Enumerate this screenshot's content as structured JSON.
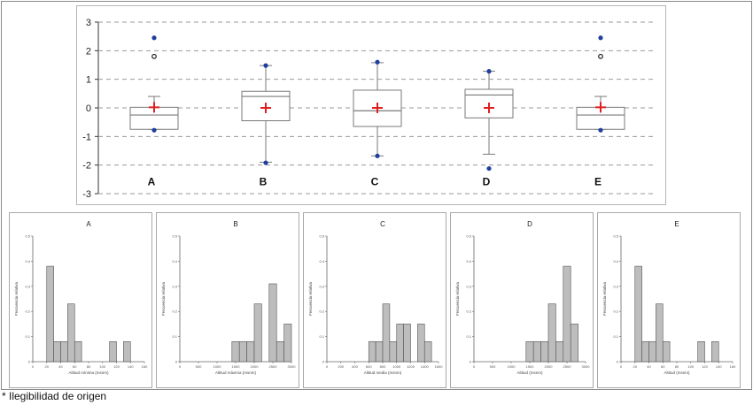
{
  "footnote": "* Ilegibilidad de origen",
  "colors": {
    "box_fill": "#ffffff",
    "box_stroke": "#7a7a7a",
    "mean_marker": "#e02020",
    "outlier": "#1f3f9f",
    "bar_fill": "#bdbdbd",
    "bar_stroke": "#555555"
  },
  "chart_data": [
    {
      "type": "box",
      "title": "",
      "ylim": [
        -3,
        3
      ],
      "yticks": [
        "3",
        "2",
        "1",
        "0",
        "-1",
        "-2",
        "-3"
      ],
      "categories": [
        "A",
        "B",
        "C",
        "D",
        "E"
      ],
      "boxes": [
        {
          "label": "A",
          "whisker_low": -0.75,
          "q1": -0.75,
          "median": -0.25,
          "q3": 0.02,
          "whisker_high": 0.4,
          "mean": 0.02,
          "outliers_filled": [
            2.45,
            -0.78
          ],
          "outliers_open": [
            1.8
          ]
        },
        {
          "label": "B",
          "whisker_low": -1.9,
          "q1": -0.45,
          "median": 0.4,
          "q3": 0.58,
          "whisker_high": 1.48,
          "mean": 0.0,
          "outliers_filled": [
            1.48,
            -1.92
          ],
          "outliers_open": []
        },
        {
          "label": "C",
          "whisker_low": -1.68,
          "q1": -0.65,
          "median": -0.1,
          "q3": 0.62,
          "whisker_high": 1.58,
          "mean": 0.0,
          "outliers_filled": [
            1.6,
            -1.68
          ],
          "outliers_open": []
        },
        {
          "label": "D",
          "whisker_low": -1.62,
          "q1": -0.35,
          "median": 0.45,
          "q3": 0.65,
          "whisker_high": 1.28,
          "mean": 0.0,
          "outliers_filled": [
            1.28,
            -2.12
          ],
          "outliers_open": []
        },
        {
          "label": "E",
          "whisker_low": -0.75,
          "q1": -0.75,
          "median": -0.25,
          "q3": 0.02,
          "whisker_high": 0.4,
          "mean": 0.02,
          "outliers_filled": [
            2.45,
            -0.78
          ],
          "outliers_open": [
            1.8
          ]
        }
      ]
    },
    {
      "type": "bar",
      "title": "A",
      "ylabel": "Frecuencia relativa",
      "xlabel": "Altitud mínima (msnm)",
      "ylim": [
        0,
        0.5
      ],
      "yticks": [
        "0.5",
        "0.4",
        "0.3",
        "0.2",
        "0.1",
        "0"
      ],
      "xlim": [
        0,
        160
      ],
      "xticks": [
        "0",
        "20",
        "40",
        "60",
        "80",
        "100",
        "120",
        "140",
        "160"
      ],
      "bin_width": 10,
      "bins": [
        20,
        30,
        40,
        50,
        60,
        110,
        130
      ],
      "values": [
        0.38,
        0.08,
        0.08,
        0.23,
        0.08,
        0.08,
        0.08
      ]
    },
    {
      "type": "bar",
      "title": "B",
      "ylabel": "Frecuencia relativa",
      "xlabel": "Altitud máxima (msnm)",
      "ylim": [
        0,
        0.5
      ],
      "yticks": [
        "0.5",
        "0.4",
        "0.3",
        "0.2",
        "0.1",
        "0"
      ],
      "xlim": [
        0,
        3000
      ],
      "xticks": [
        "0",
        "500",
        "1000",
        "1500",
        "2000",
        "2500",
        "3000"
      ],
      "bin_width": 200,
      "bins": [
        1400,
        1600,
        1800,
        2000,
        2400,
        2600,
        2800
      ],
      "values": [
        0.08,
        0.08,
        0.08,
        0.23,
        0.31,
        0.08,
        0.15
      ]
    },
    {
      "type": "bar",
      "title": "C",
      "ylabel": "Frecuencia relativa",
      "xlabel": "Altitud media (msnm)",
      "ylim": [
        0,
        0.5
      ],
      "yticks": [
        "0.5",
        "0.4",
        "0.3",
        "0.2",
        "0.1",
        "0"
      ],
      "xlim": [
        0,
        1600
      ],
      "xticks": [
        "0",
        "200",
        "400",
        "600",
        "800",
        "1000",
        "1200",
        "1400",
        "1600"
      ],
      "bin_width": 100,
      "bins": [
        600,
        700,
        800,
        900,
        1000,
        1100,
        1300,
        1400
      ],
      "values": [
        0.08,
        0.08,
        0.23,
        0.08,
        0.15,
        0.15,
        0.15,
        0.08
      ]
    },
    {
      "type": "bar",
      "title": "D",
      "ylabel": "Frecuencia relativa",
      "xlabel": "Altitud (msnm)",
      "ylim": [
        0,
        0.5
      ],
      "yticks": [
        "0.5",
        "0.4",
        "0.3",
        "0.2",
        "0.1",
        "0"
      ],
      "xlim": [
        0,
        3000
      ],
      "xticks": [
        "0",
        "500",
        "1000",
        "1500",
        "2000",
        "2500",
        "3000"
      ],
      "bin_width": 200,
      "bins": [
        1400,
        1600,
        1800,
        2000,
        2200,
        2400,
        2600
      ],
      "values": [
        0.08,
        0.08,
        0.08,
        0.23,
        0.08,
        0.38,
        0.15
      ]
    },
    {
      "type": "bar",
      "title": "E",
      "ylabel": "Frecuencia relativa",
      "xlabel": "Altitud (msnm)",
      "ylim": [
        0,
        0.5
      ],
      "yticks": [
        "0.5",
        "0.4",
        "0.3",
        "0.2",
        "0.1",
        "0"
      ],
      "xlim": [
        0,
        160
      ],
      "xticks": [
        "0",
        "20",
        "40",
        "60",
        "80",
        "100",
        "120",
        "140",
        "160"
      ],
      "bin_width": 10,
      "bins": [
        20,
        30,
        40,
        50,
        60,
        110,
        130
      ],
      "values": [
        0.38,
        0.08,
        0.08,
        0.23,
        0.08,
        0.08,
        0.08
      ]
    }
  ]
}
